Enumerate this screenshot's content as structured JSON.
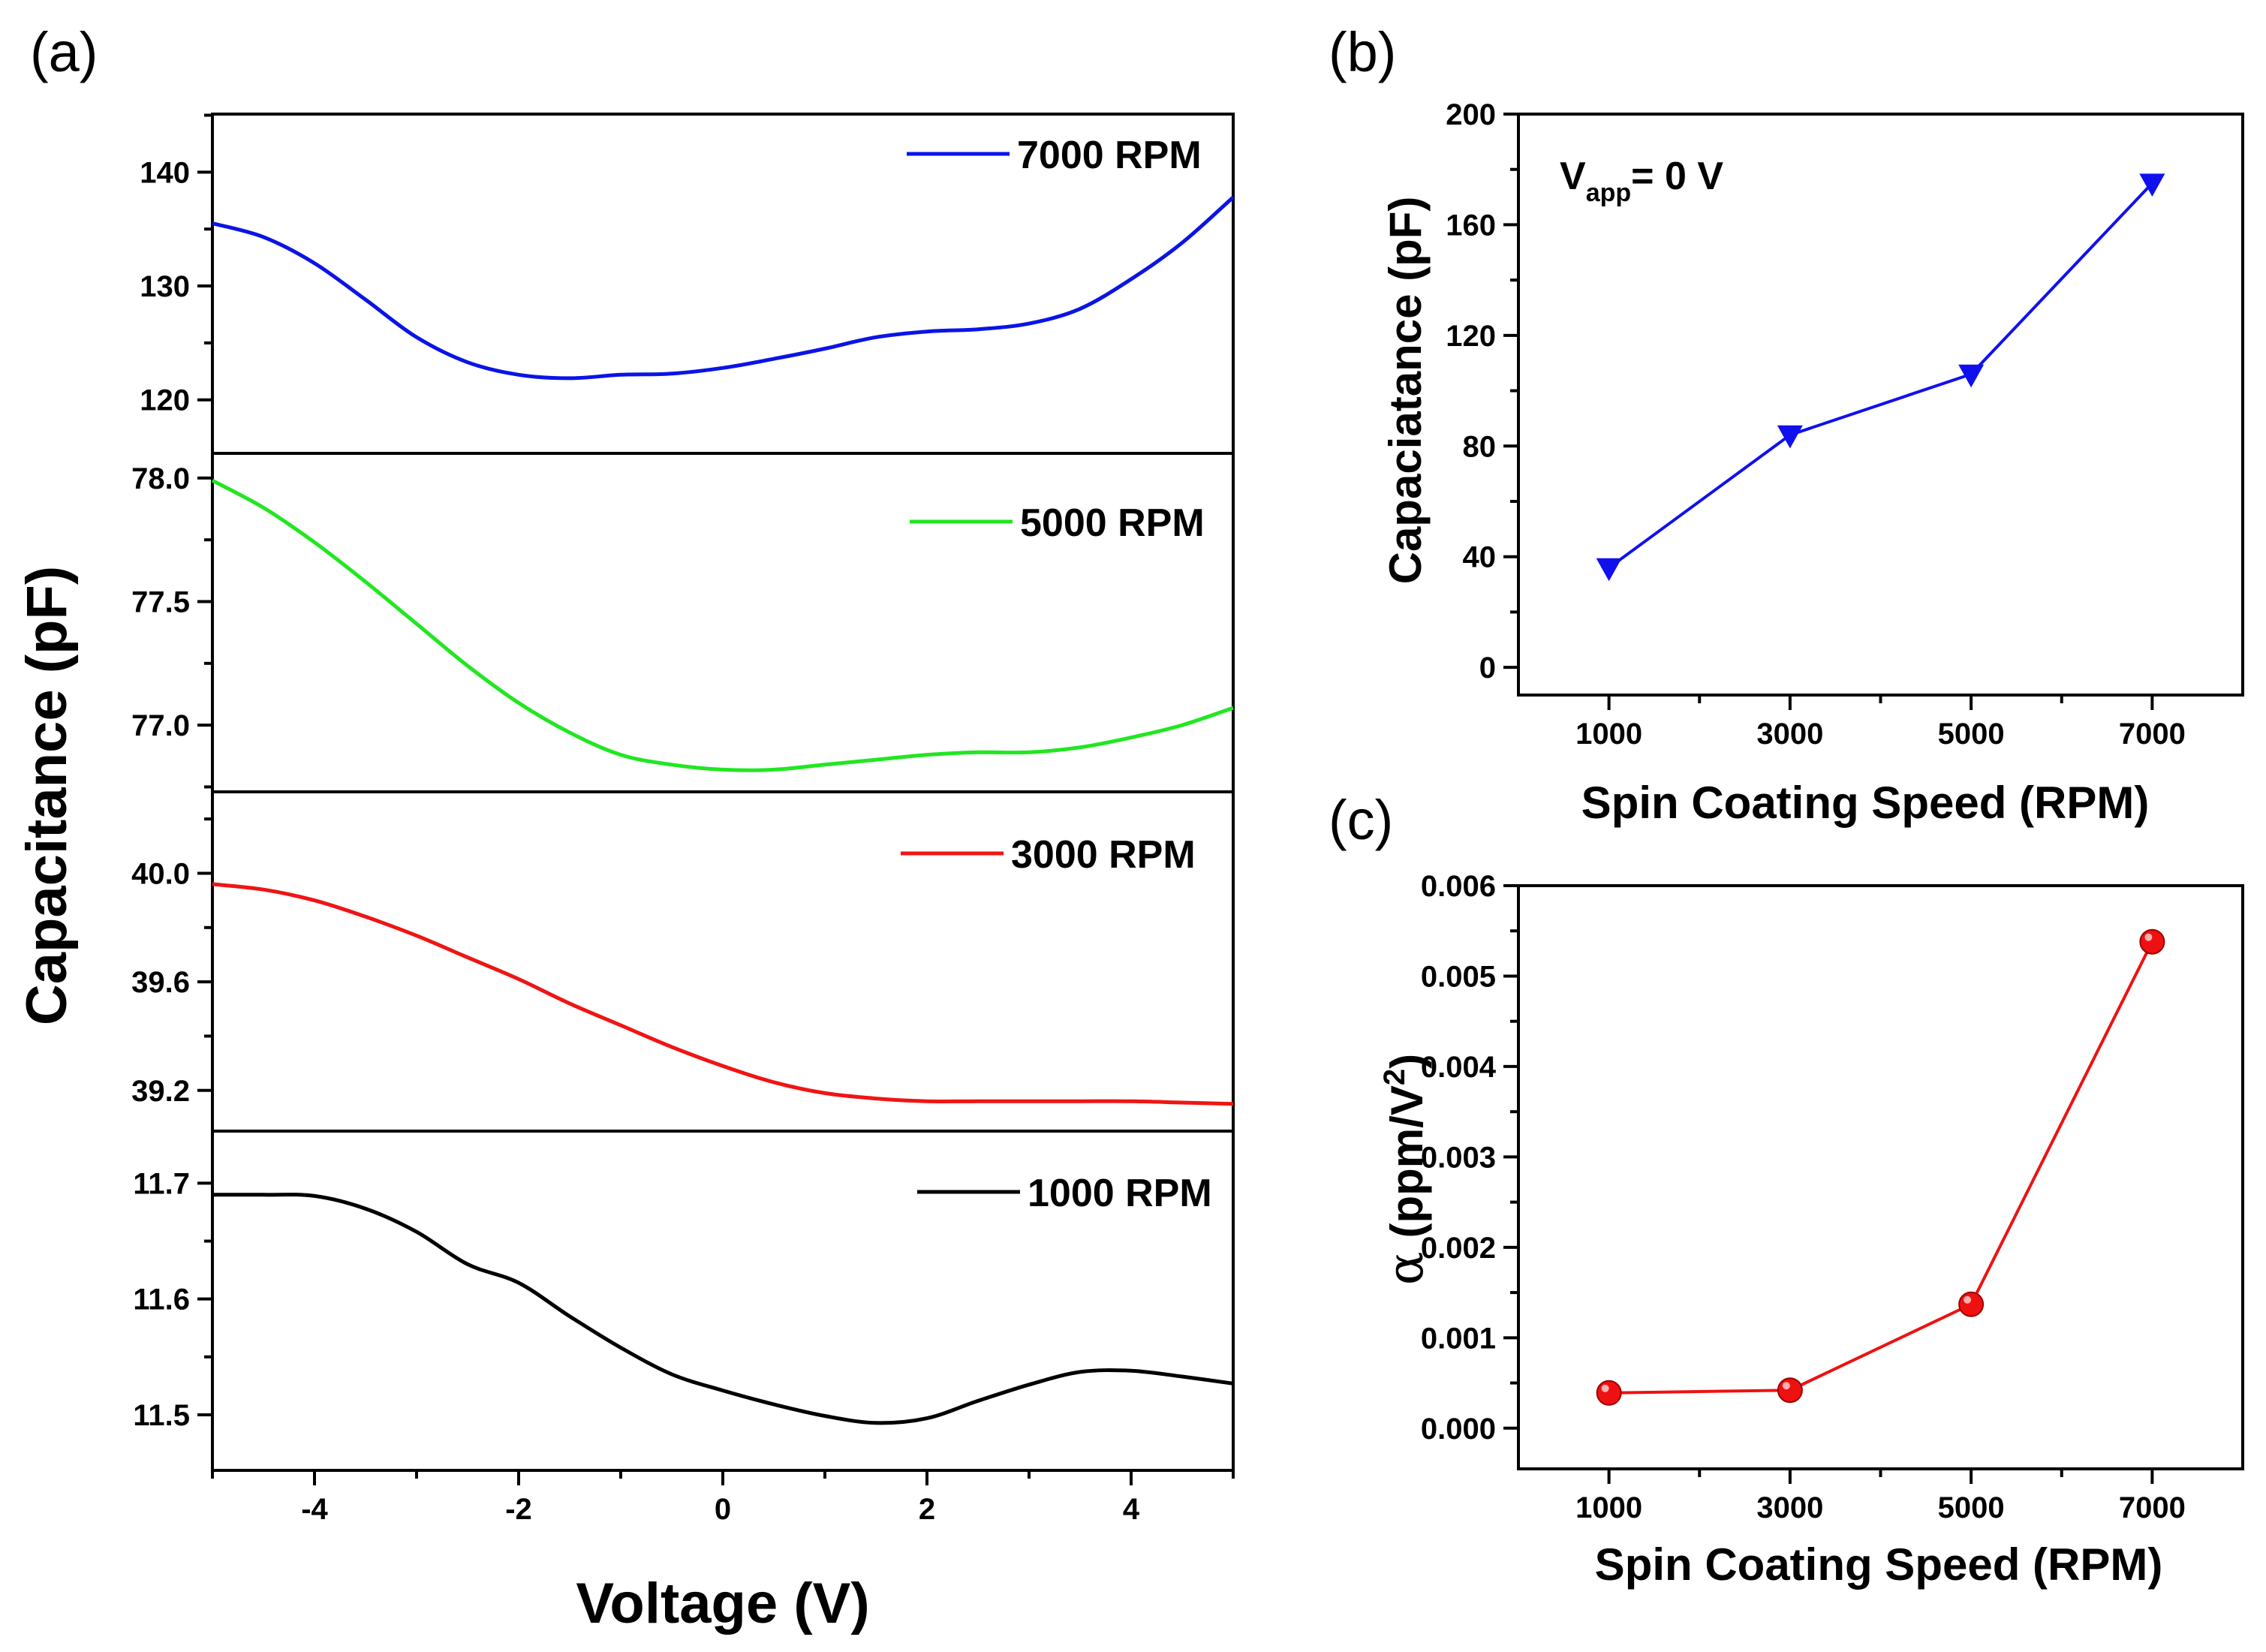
{
  "colors": {
    "7000": "#0a14e6",
    "5000": "#22e622",
    "3000": "#f01414",
    "1000": "#000000",
    "b_series": "#1010ee",
    "c_series": "#ee1111"
  },
  "chart_data": [
    {
      "panel": "(a)",
      "type": "line",
      "xlabel": "Voltage (V)",
      "ylabel": "Capacitance (pF)",
      "xlim": [
        -5,
        5
      ],
      "xticks": [
        -4,
        -2,
        0,
        2,
        4
      ],
      "xtick_labels": [
        "-4",
        "-2",
        "0",
        "2",
        "4"
      ],
      "subplots": [
        {
          "name": "7000 RPM",
          "legend": "7000 RPM",
          "color_key": "7000",
          "ylim": [
            115.3,
            145.1
          ],
          "yticks": [
            120,
            130,
            140
          ],
          "ytick_labels": [
            "120",
            "130",
            "140"
          ],
          "x": [
            -5,
            -4.5,
            -4,
            -3.5,
            -3,
            -2.5,
            -2,
            -1.5,
            -1,
            -0.5,
            0,
            0.5,
            1,
            1.5,
            2,
            2.5,
            3,
            3.5,
            4,
            4.5,
            5
          ],
          "y": [
            135.5,
            134.3,
            132.0,
            128.8,
            125.5,
            123.3,
            122.2,
            121.9,
            122.2,
            122.3,
            122.8,
            123.6,
            124.5,
            125.5,
            126.0,
            126.2,
            126.7,
            128.0,
            130.6,
            133.8,
            137.8
          ]
        },
        {
          "name": "5000 RPM",
          "legend": "5000 RPM",
          "color_key": "5000",
          "ylim": [
            76.73,
            78.1
          ],
          "yticks": [
            77.0,
            77.5,
            78.0
          ],
          "ytick_labels": [
            "77.0",
            "77.5",
            "78.0"
          ],
          "x": [
            -5,
            -4.5,
            -4,
            -3.5,
            -3,
            -2.5,
            -2,
            -1.5,
            -1,
            -0.5,
            0,
            0.5,
            1,
            1.5,
            2,
            2.5,
            3,
            3.5,
            4,
            4.5,
            5
          ],
          "y": [
            77.99,
            77.88,
            77.74,
            77.58,
            77.41,
            77.24,
            77.09,
            76.97,
            76.88,
            76.84,
            76.82,
            76.82,
            76.84,
            76.86,
            76.88,
            76.89,
            76.89,
            76.91,
            76.95,
            77.0,
            77.07
          ]
        },
        {
          "name": "3000 RPM",
          "legend": "3000 RPM",
          "color_key": "3000",
          "ylim": [
            39.05,
            40.3
          ],
          "yticks": [
            39.2,
            39.6,
            40.0
          ],
          "ytick_labels": [
            "39.2",
            "39.6",
            "40.0"
          ],
          "x": [
            -5,
            -4.5,
            -4,
            -3.5,
            -3,
            -2.5,
            -2,
            -1.5,
            -1,
            -0.5,
            0,
            0.5,
            1,
            1.5,
            2,
            2.5,
            3,
            3.5,
            4,
            4.5,
            5
          ],
          "y": [
            39.96,
            39.94,
            39.9,
            39.84,
            39.77,
            39.69,
            39.61,
            39.52,
            39.44,
            39.36,
            39.29,
            39.23,
            39.19,
            39.17,
            39.16,
            39.16,
            39.16,
            39.16,
            39.16,
            39.155,
            39.15
          ]
        },
        {
          "name": "1000 RPM",
          "legend": "1000 RPM",
          "color_key": "1000",
          "ylim": [
            11.452,
            11.745
          ],
          "yticks": [
            11.5,
            11.6,
            11.7
          ],
          "ytick_labels": [
            "11.5",
            "11.6",
            "11.7"
          ],
          "x": [
            -5,
            -4.5,
            -4,
            -3.5,
            -3,
            -2.5,
            -2,
            -1.5,
            -1,
            -0.5,
            0,
            0.5,
            1,
            1.5,
            2,
            2.5,
            3,
            3.5,
            4,
            4.5,
            5
          ],
          "y": [
            11.69,
            11.69,
            11.689,
            11.678,
            11.658,
            11.63,
            11.614,
            11.585,
            11.558,
            11.535,
            11.521,
            11.509,
            11.499,
            11.493,
            11.497,
            11.512,
            11.526,
            11.537,
            11.538,
            11.533,
            11.527
          ]
        }
      ]
    },
    {
      "panel": "(b)",
      "type": "line",
      "marker": "triangle-down",
      "color_key": "b_series",
      "xlabel": "Spin Coating Speed (RPM)",
      "ylabel": "Capaciatance  (pF)",
      "annotation": "V",
      "annotation_sub": "app",
      "annotation_rest": "= 0 V",
      "x": [
        1000,
        3000,
        5000,
        7000
      ],
      "y": [
        36,
        84,
        106,
        175
      ],
      "xlim": [
        0,
        8000
      ],
      "ylim": [
        -10,
        200
      ],
      "xticks": [
        1000,
        3000,
        5000,
        7000
      ],
      "xtick_labels": [
        "1000",
        "3000",
        "5000",
        "7000"
      ],
      "yticks": [
        0,
        40,
        80,
        120,
        160,
        200
      ],
      "ytick_labels": [
        "0",
        "40",
        "80",
        "120",
        "160",
        "200"
      ]
    },
    {
      "panel": "(c)",
      "type": "line",
      "marker": "circle",
      "color_key": "c_series",
      "xlabel": "Spin Coating Speed (RPM)",
      "ylabel_symbol": "α",
      "ylabel_text": "(ppm/V",
      "ylabel_sup": "2",
      "ylabel_close": ")",
      "x": [
        1000,
        3000,
        5000,
        7000
      ],
      "y": [
        0.00039,
        0.00042,
        0.00137,
        0.00538
      ],
      "xlim": [
        0,
        8000
      ],
      "ylim": [
        -0.00045,
        0.006
      ],
      "xticks": [
        1000,
        3000,
        5000,
        7000
      ],
      "xtick_labels": [
        "1000",
        "3000",
        "5000",
        "7000"
      ],
      "yticks": [
        0.0,
        0.001,
        0.002,
        0.003,
        0.004,
        0.005,
        0.006
      ],
      "ytick_labels": [
        "0.000",
        "0.001",
        "0.002",
        "0.003",
        "0.004",
        "0.005",
        "0.006"
      ]
    }
  ]
}
